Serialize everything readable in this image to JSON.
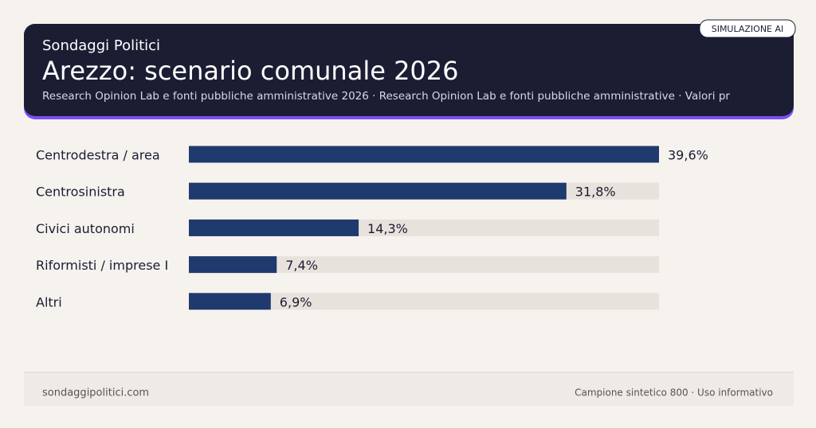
{
  "chart_data": {
    "type": "hbar",
    "kicker": "Sondaggi Politici",
    "title": "Arezzo: scenario comunale 2026",
    "subtitle": "Research Opinion Lab e fonti pubbliche amministrative 2026 · Research Opinion Lab e fonti pubbliche amministrative · Valori pr",
    "badge": "SIMULAZIONE AI",
    "categories": [
      "Centrodestra / area",
      "Centrosinistra",
      "Civici autonomi",
      "Riformisti / imprese I",
      "Altri"
    ],
    "values": [
      39.6,
      31.8,
      14.3,
      7.4,
      6.9
    ],
    "value_labels": [
      "39,6%",
      "31,8%",
      "14,3%",
      "7,4%",
      "6,9%"
    ],
    "color": "#1f3a6e",
    "track_color": "#e8e2dc",
    "xlim": [
      0,
      39.6
    ],
    "footer_left": "sondaggipolitici.com",
    "footer_right": "Campione sintetico 800 · Uso informativo"
  }
}
